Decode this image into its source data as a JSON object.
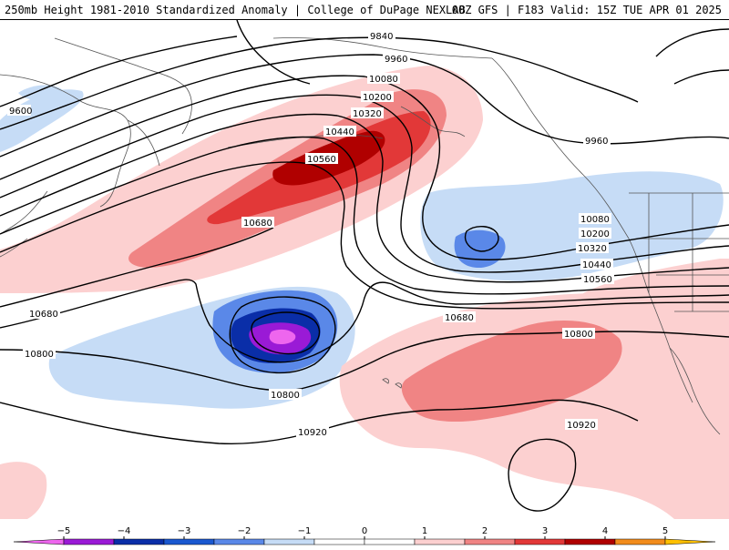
{
  "header": {
    "title": "250mb Height 1981-2010 Standardized Anomaly | College of DuPage NEXLAB",
    "run_info": "00Z GFS | F183 Valid: 15Z TUE APR 01 2025"
  },
  "contour_labels": {
    "c9840": "9840",
    "c9960_a": "9960",
    "c9960_b": "9960",
    "c9600": "9600",
    "c10080_a": "10080",
    "c10080_b": "10080",
    "c10200_a": "10200",
    "c10200_b": "10200",
    "c10320_a": "10320",
    "c10320_b": "10320",
    "c10440_a": "10440",
    "c10440_b": "10440",
    "c10560_a": "10560",
    "c10560_b": "10560",
    "c10680_a": "10680",
    "c10680_b": "10680",
    "c10680_c": "10680",
    "c10800_a": "10800",
    "c10800_b": "10800",
    "c10800_c": "10800",
    "c10920_a": "10920",
    "c10920_b": "10920"
  },
  "colorbar": {
    "ticks": [
      "−5",
      "−4",
      "−3",
      "−2",
      "−1",
      "0",
      "1",
      "2",
      "3",
      "4",
      "5"
    ],
    "colors": [
      "#ee66ee",
      "#9a1ad6",
      "#0a2ea8",
      "#1a58d0",
      "#5a88e8",
      "#c6dcf6",
      "#ffffff",
      "#ffffff",
      "#fcd0d0",
      "#f08484",
      "#e23838",
      "#b00000",
      "#f28c1c",
      "#ffc000"
    ]
  }
}
